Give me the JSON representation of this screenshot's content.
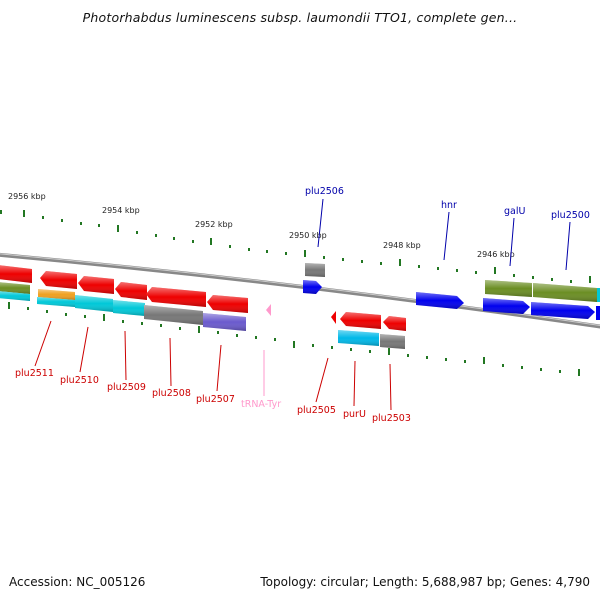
{
  "title": "Photorhabdus luminescens subsp. laumondii TTO1, complete gen...",
  "footer": {
    "accession": "Accession: NC_005126",
    "topology": "Topology: circular; Length: 5,688,987 bp; Genes: 4,790"
  },
  "colors": {
    "red": "#ee0000",
    "blue": "#0000ee",
    "olive": "#6b8e23",
    "cyan": "#00c8d8",
    "gray": "#777777",
    "purple": "#6a5acd",
    "orange": "#f0a020",
    "trna_pink": "#ff99cc",
    "tick_green": "#227722",
    "label_red": "#cc0000",
    "label_blue": "#0000aa"
  },
  "kbp_labels": [
    "2956 kbp",
    "2954 kbp",
    "2952 kbp",
    "2950 kbp",
    "2948 kbp",
    "2946 kbp"
  ],
  "gene_labels": {
    "plu2511": "plu2511",
    "plu2510": "plu2510",
    "plu2509": "plu2509",
    "plu2508": "plu2508",
    "plu2507": "plu2507",
    "trna_tyr": "tRNA-Tyr",
    "plu2505": "plu2505",
    "purU": "purU",
    "plu2503": "plu2503",
    "plu2506": "plu2506",
    "hnr": "hnr",
    "galU": "galU",
    "plu2500": "plu2500"
  }
}
